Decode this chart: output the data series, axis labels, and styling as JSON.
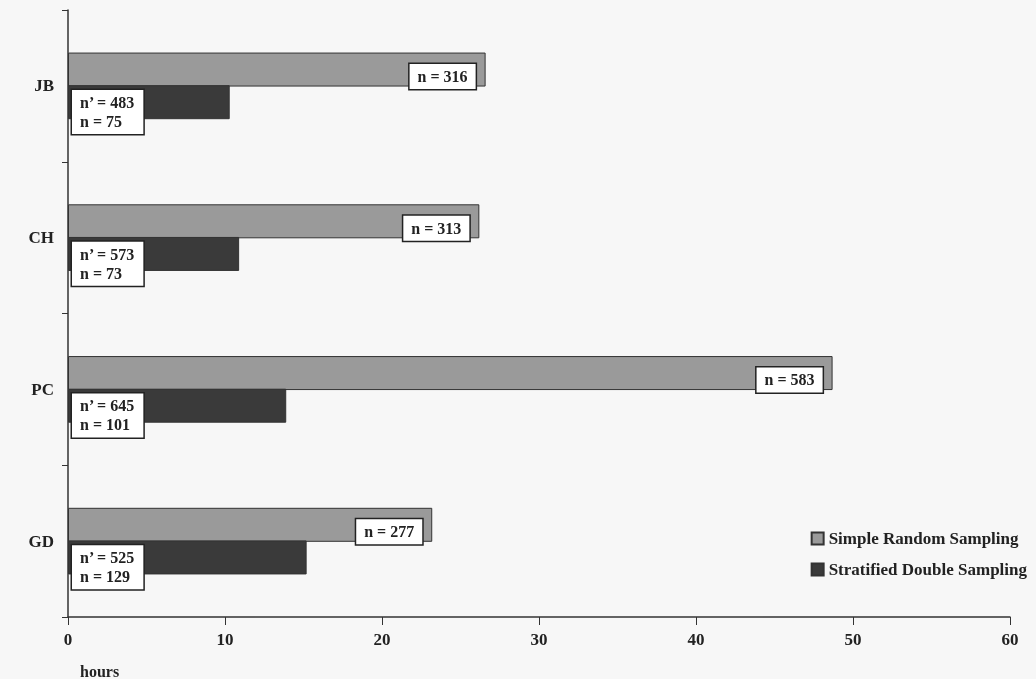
{
  "chart_data": {
    "type": "bar",
    "orientation": "horizontal",
    "xlabel": "hours",
    "categories": [
      "JB",
      "CH",
      "PC",
      "GD"
    ],
    "series": [
      {
        "name": "Simple Random Sampling",
        "color": "#9a9a9a",
        "values": [
          26.6,
          26.2,
          48.7,
          23.2
        ]
      },
      {
        "name": "Stratified Double Sampling",
        "color": "#3a3a3a",
        "values": [
          10.3,
          10.9,
          13.9,
          15.2
        ]
      }
    ],
    "annotations": [
      {
        "text": "n = 316",
        "x": 26.6,
        "y": "JB"
      },
      {
        "text": "n’ = 483\nn = 75",
        "x": 0,
        "y": "JB"
      },
      {
        "text": "n = 313",
        "x": 26.2,
        "y": "CH"
      },
      {
        "text": "n’ = 573\nn = 73",
        "x": 0,
        "y": "CH"
      },
      {
        "text": "n = 583",
        "x": 48.7,
        "y": "PC"
      },
      {
        "text": "n’ = 645\nn = 101",
        "x": 0,
        "y": "PC"
      },
      {
        "text": "n = 277",
        "x": 23.2,
        "y": "GD"
      },
      {
        "text": "n’ = 525\nn = 129",
        "x": 0,
        "y": "GD"
      }
    ],
    "xlim": [
      0,
      60
    ],
    "xticks": [
      0,
      10,
      20,
      30,
      40,
      50,
      60
    ],
    "grid": false,
    "legend": "bottom right"
  }
}
